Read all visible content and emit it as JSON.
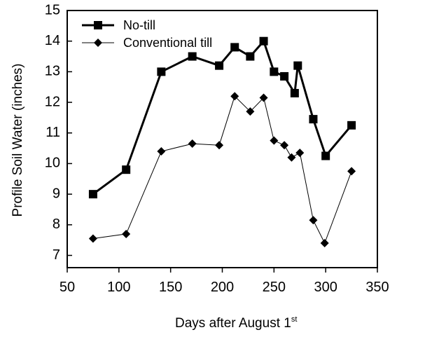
{
  "chart_data": {
    "type": "line",
    "xlabel": "Days after August 1",
    "xlabel_superscript": "st",
    "ylabel": "Profile Soil Water (inches)",
    "xlim": [
      50,
      350
    ],
    "ylim": [
      6.6,
      15
    ],
    "xticks": [
      50,
      100,
      150,
      200,
      250,
      300,
      350
    ],
    "yticks": [
      7,
      8,
      9,
      10,
      11,
      12,
      13,
      14,
      15
    ],
    "grid": false,
    "legend_position": "top-left",
    "series": [
      {
        "name": "No-till",
        "marker": "square",
        "color": "#000000",
        "x": [
          75,
          107,
          141,
          171,
          197,
          212,
          227,
          240,
          250,
          260,
          270,
          273,
          288,
          300,
          325
        ],
        "y": [
          9.0,
          9.8,
          13.0,
          13.5,
          13.2,
          13.8,
          13.5,
          14.0,
          13.0,
          12.85,
          12.3,
          13.2,
          11.45,
          10.25,
          11.25
        ]
      },
      {
        "name": "Conventional till",
        "marker": "diamond",
        "color": "#000000",
        "x": [
          75,
          107,
          141,
          171,
          197,
          212,
          227,
          240,
          250,
          260,
          267,
          275,
          288,
          299,
          325
        ],
        "y": [
          7.55,
          7.7,
          10.4,
          10.65,
          10.6,
          12.2,
          11.7,
          12.15,
          10.75,
          10.6,
          10.2,
          10.35,
          8.15,
          7.4,
          9.75
        ]
      }
    ]
  }
}
